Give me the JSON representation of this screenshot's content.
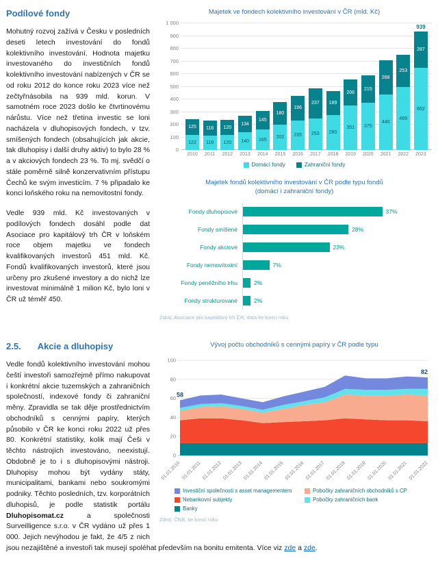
{
  "section1": {
    "heading": "Podílové fondy",
    "para1": "Mohutný rozvoj zažívá v Česku v posledních deseti letech investování do fondů kolektivního investování. Hodnota majetku investovaného do investičních fondů kolektivního investování nabízených v ČR se od roku 2012 do konce roku 2023 více než zečtyřnásobila na 939 mld. korun. V samotném roce 2023 došlo ke čtvrtinovému nárůstu. Více než třetina investic se loni nacházela v dluhopisových fondech, v tzv. smíšených fondech (obsahujících jak akcie, tak dluhopisy i další druhy aktiv) to bylo 28 % a v akciových fondech 23 %. To mj. svědčí o stále poměrně silně konzervativním přístupu Čechů ke svým investicím. 7 % připadalo ke konci loňského roku na nemovitostní fondy.",
    "para2": "Vedle 939 mld. Kč investovaných v podílových fondech dosáhl podle dat Asociace pro kapitálový trh ČR v loňském roce objem majetku ve fondech kvalifikovaných investorů 451 mld. Kč. Fondů kvalifikovaných investorů, které jsou určeny pro zkušené investory a do nichž lze investovat minimálně 1 milion Kč, bylo loni v ČR už téměř 450."
  },
  "section2": {
    "number": "2.5.",
    "heading": "Akcie a dluhopisy",
    "para1a": "Vedle fondů kolektivního investování mohou čeští investoři samozřejmě přímo nakupovat i konkrétní akcie tuzemských a zahraničních společností, indexové fondy či zahraniční měny. Zpravidla se tak děje prostřednictvím obchodníků s cennými papíry, kterých působilo v ČR ke konci roku 2022 už přes 80. Konkrétní statistiky, kolik mají Češi v těchto nástrojích investováno, neexistují. Obdobně je to i s dluhopisovými nástroji. Dluhopisy mohou být vydány státy, municipalitami, bankami nebo soukromými podniky. Těchto posledních, tzv. korporátních dluhopisů, je podle statistik portálu ",
    "brand": "Dluhopisomat.cz",
    "para1b": " a společnosti Surveilligence s.r.o. v ČR vydáno už přes 1 000. Jejich nevýhodou je fakt, že 4/5 z nich jsou nezajištěné a investoři tak musejí spoléhat především na bonitu emitenta. ",
    "more": "Více viz ",
    "link1": "zde",
    "conj": " a ",
    "link2": "zde",
    "period": "."
  },
  "chart_data": [
    {
      "type": "bar",
      "stacked": true,
      "title": "Majetek ve fondech kolektivního investování v ČR (mld. Kč)",
      "categories": [
        "2010",
        "2011",
        "2012",
        "2013",
        "2014",
        "2015",
        "2016",
        "2017",
        "2018",
        "2019",
        "2020",
        "2021",
        "2022",
        "2023"
      ],
      "series": [
        {
          "name": "Domácí fondy",
          "color": "#3FDBE4",
          "values": [
            122,
            116,
            120,
            140,
            165,
            202,
            235,
            253,
            280,
            351,
            375,
            440,
            499,
            652
          ]
        },
        {
          "name": "Zahraniční fondy",
          "color": "#08828D",
          "values": [
            125,
            116,
            120,
            134,
            145,
            180,
            196,
            237,
            189,
            206,
            215,
            268,
            253,
            287
          ]
        }
      ],
      "total_label": {
        "category": "2023",
        "value": "939"
      },
      "ylim": [
        0,
        1000
      ],
      "yticks_bottom_to_top": [
        "0",
        "100",
        "200",
        "300",
        "400",
        "500",
        "600",
        "700",
        "800",
        "900",
        "1 000"
      ],
      "grid": true,
      "legend_position": "bottom"
    },
    {
      "type": "bar",
      "orientation": "horizontal",
      "title": "Majetek fondů kolektivního investování v ČR podle typu fondů",
      "subtitle": "(domácí i zahraniční fondy)",
      "categories": [
        "Fondy dluhopisové",
        "Fondy smíšené",
        "Fondy akciové",
        "Fondy nemovitostní",
        "Fondy peněžního trhu",
        "Fondy strukturované"
      ],
      "values": [
        37,
        28,
        23,
        7,
        2,
        2
      ],
      "value_suffix": "%",
      "bar_color": "#00A79D",
      "xlim": [
        0,
        40
      ],
      "source": "Zdroj: Asociace pro kapitálový trh ČR, data ke konci roku"
    },
    {
      "type": "area",
      "stacked": true,
      "title": "Vývoj počtu obchodníků s cennými papíry v ČR podle typu",
      "x": [
        "01.01.2010",
        "01.01.2011",
        "01.01.2012",
        "01.01.2013",
        "01.01.2014",
        "01.01.2015",
        "01.01.2016",
        "01.01.2017",
        "01.01.2018",
        "01.01.2019",
        "01.01.2020",
        "01.01.2021",
        "01.01.2022"
      ],
      "series_bottom_to_top": [
        {
          "name": "Banky",
          "color": "#00838C",
          "values": [
            13,
            13,
            13,
            13,
            13,
            13,
            13,
            13,
            13,
            13,
            13,
            13,
            13
          ]
        },
        {
          "name": "Nebankovní subjekty",
          "color": "#F5472E",
          "values": [
            24,
            26,
            26,
            24,
            21,
            22,
            23,
            24,
            26,
            25,
            24,
            24,
            23
          ]
        },
        {
          "name": "Pobočky zahraničních obchodníků s CP",
          "color": "#F9AB90",
          "values": [
            10,
            12,
            13,
            12,
            11,
            14,
            17,
            19,
            25,
            25,
            26,
            27,
            27
          ]
        },
        {
          "name": "Pobočky zahraničních bank",
          "color": "#63E2EC",
          "values": [
            3,
            3,
            3,
            3,
            3,
            4,
            4,
            5,
            6,
            6,
            6,
            6,
            7
          ]
        },
        {
          "name": "Investiční společnosti s asset managementem",
          "color": "#7488DE",
          "values": [
            8,
            9,
            9,
            8,
            8,
            9,
            10,
            11,
            14,
            12,
            12,
            13,
            12
          ]
        }
      ],
      "legend_display_order": [
        {
          "label": "Investiční společnosti s asset managementem",
          "color": "#7488DE"
        },
        {
          "label": "Pobočky zahraničních obchodníků s CP",
          "color": "#F9AB90"
        },
        {
          "label": "Nebankovní subjekty",
          "color": "#F5472E"
        },
        {
          "label": "Pobočky zahraničních bank",
          "color": "#63E2EC"
        },
        {
          "label": "Banky",
          "color": "#00838C"
        }
      ],
      "annotations": [
        {
          "x_index": 0,
          "label": "58"
        },
        {
          "x_index": 12,
          "label": "82"
        }
      ],
      "ylim": [
        0,
        100
      ],
      "yticks": [
        "0",
        "20",
        "40",
        "60",
        "80",
        "100"
      ],
      "grid": true,
      "source": "Zdroj: ČNB, ke konci roku"
    }
  ]
}
